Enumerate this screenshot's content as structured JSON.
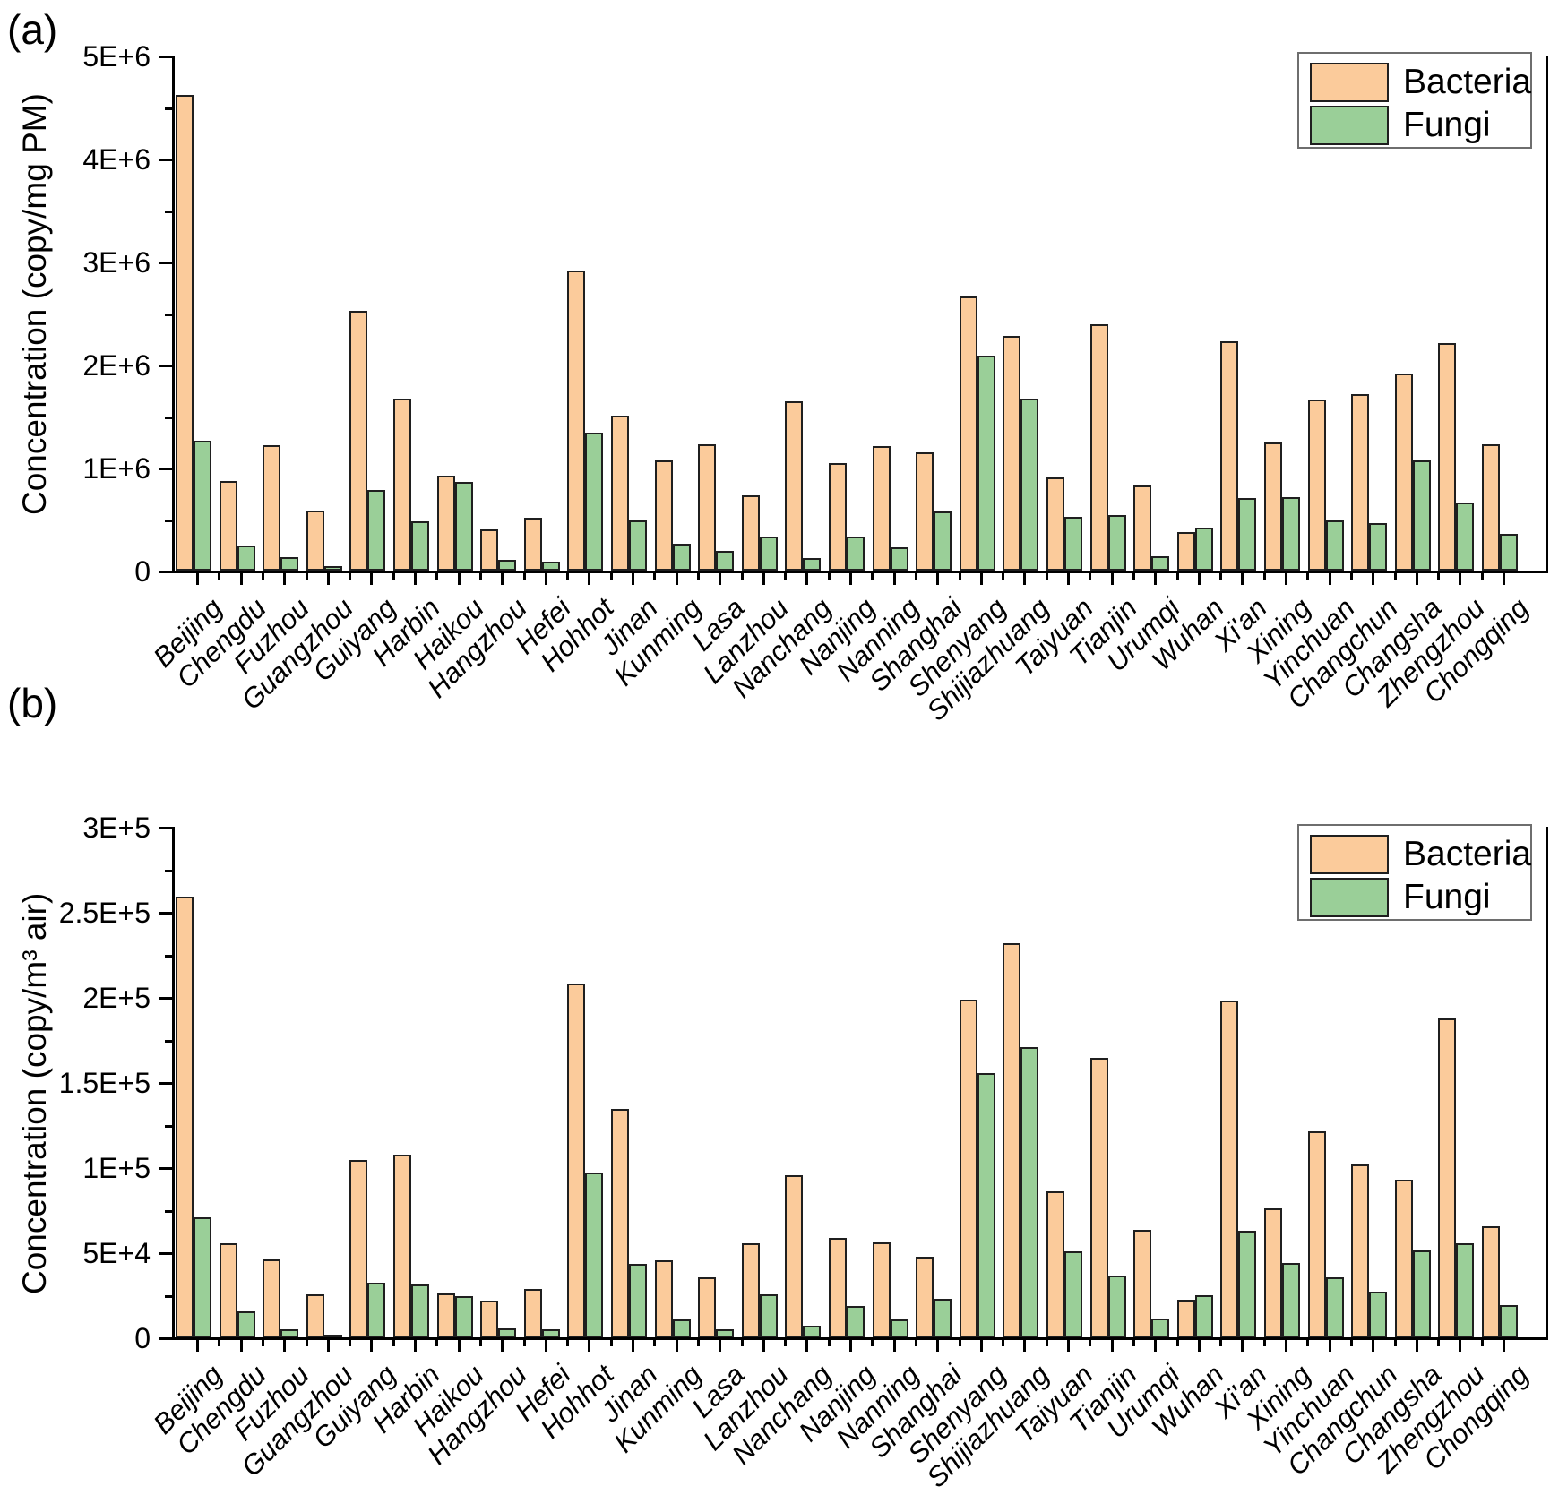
{
  "page": {
    "panel_a_label": "(a)",
    "panel_b_label": "(b)"
  },
  "legend": {
    "bacteria_label": "Bacteria",
    "fungi_label": "Fungi",
    "bacteria_color": "#FBCB9B",
    "fungi_color": "#9ACF98"
  },
  "chart_data": [
    {
      "type": "bar",
      "title": "",
      "xlabel": "",
      "ylabel": "Concentration (copy/mg PM)",
      "ylim": [
        0,
        5000000
      ],
      "ytick_labels": [
        "0",
        "1E+6",
        "2E+6",
        "3E+6",
        "4E+6",
        "5E+6"
      ],
      "ytick_values": [
        0,
        1000000,
        2000000,
        3000000,
        4000000,
        5000000
      ],
      "minor_step": 500000,
      "grid": false,
      "legend_position": "top-right",
      "categories": [
        "Beijing",
        "Chengdu",
        "Fuzhou",
        "Guangzhou",
        "Guiyang",
        "Harbin",
        "Haikou",
        "Hangzhou",
        "Hefei",
        "Hohhot",
        "Jinan",
        "Kunming",
        "Lasa",
        "Lanzhou",
        "Nanchang",
        "Nanjing",
        "Nanning",
        "Shanghai",
        "Shenyang",
        "Shijiazhuang",
        "Taiyuan",
        "Tianjin",
        "Urumqi",
        "Wuhan",
        "Xi'an",
        "Xining",
        "Yinchuan",
        "Changchun",
        "Changsha",
        "Zhengzhou",
        "Chongqing"
      ],
      "series": [
        {
          "name": "Bacteria",
          "values": [
            4620000,
            870000,
            1220000,
            580000,
            2520000,
            1670000,
            920000,
            400000,
            510000,
            2910000,
            1500000,
            1070000,
            1230000,
            730000,
            1640000,
            1040000,
            1210000,
            1150000,
            2660000,
            2280000,
            900000,
            2390000,
            830000,
            370000,
            2230000,
            1240000,
            1660000,
            1710000,
            1910000,
            2210000,
            1230000
          ]
        },
        {
          "name": "Fungi",
          "values": [
            1260000,
            240000,
            130000,
            40000,
            780000,
            480000,
            860000,
            100000,
            90000,
            1340000,
            490000,
            260000,
            190000,
            330000,
            120000,
            330000,
            230000,
            570000,
            2090000,
            1670000,
            520000,
            540000,
            140000,
            420000,
            700000,
            710000,
            490000,
            460000,
            1070000,
            660000,
            360000
          ]
        }
      ]
    },
    {
      "type": "bar",
      "title": "",
      "xlabel": "",
      "ylabel": "Concentration (copy/m³ air)",
      "ylim": [
        0,
        300000
      ],
      "ytick_labels": [
        "0",
        "5E+4",
        "1E+5",
        "1.5E+5",
        "2E+5",
        "2.5E+5",
        "3E+5"
      ],
      "ytick_values": [
        0,
        50000,
        100000,
        150000,
        200000,
        250000,
        300000
      ],
      "minor_step": 25000,
      "grid": false,
      "legend_position": "top-right",
      "categories": [
        "Beijing",
        "Chengdu",
        "Fuzhou",
        "Guangzhou",
        "Guiyang",
        "Harbin",
        "Haikou",
        "Hangzhou",
        "Hefei",
        "Hohhot",
        "Jinan",
        "Kunming",
        "Lasa",
        "Lanzhou",
        "Nanchang",
        "Nanjing",
        "Nanning",
        "Shanghai",
        "Shenyang",
        "Shijiazhuang",
        "Taiyuan",
        "Tianjin",
        "Urumqi",
        "Wuhan",
        "Xi'an",
        "Xining",
        "Yinchuan",
        "Changchun",
        "Changsha",
        "Zhengzhou",
        "Chongqing"
      ],
      "series": [
        {
          "name": "Bacteria",
          "values": [
            259000,
            55500,
            46000,
            25000,
            104000,
            107500,
            26000,
            21500,
            28500,
            208000,
            134000,
            45000,
            35500,
            55500,
            95500,
            58500,
            56000,
            47500,
            198500,
            231500,
            86000,
            164000,
            63000,
            22000,
            198000,
            76000,
            121000,
            101500,
            92500,
            187500,
            65500
          ]
        },
        {
          "name": "Fungi",
          "values": [
            70500,
            15000,
            4700,
            1500,
            32000,
            31000,
            24000,
            5300,
            4700,
            97000,
            43000,
            10500,
            4700,
            25500,
            7000,
            18500,
            10500,
            22500,
            155500,
            170500,
            50500,
            36500,
            11000,
            24500,
            62500,
            43500,
            35000,
            27000,
            51000,
            55000,
            19000
          ]
        }
      ]
    }
  ]
}
